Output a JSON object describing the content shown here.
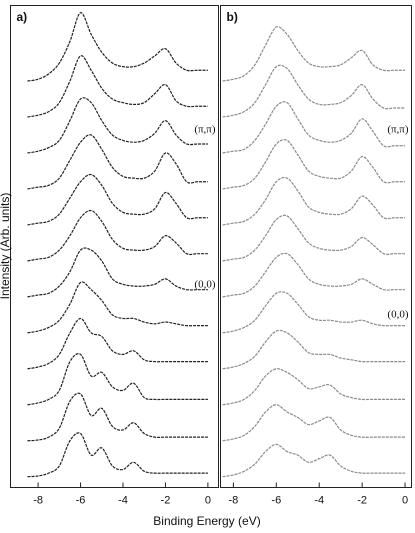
{
  "chart_data": [
    {
      "type": "line",
      "panel_label": "a)",
      "xlabel": "Binding Energy (eV)",
      "ylabel": "Intensity (Arb. units)",
      "x": [
        -8.5,
        -8,
        -7.5,
        -7,
        -6.5,
        -6,
        -5.5,
        -5,
        -4.5,
        -4,
        -3.5,
        -3,
        -2.5,
        -2,
        -1.5,
        -1,
        -0.5,
        0
      ],
      "xlim": [
        -9.3,
        0.5
      ],
      "xticks": [
        -8,
        -6,
        -4,
        -2,
        0
      ],
      "ylim": [
        -0.2,
        13.2
      ],
      "annotations": [
        "(π,π)",
        "(0,0)"
      ],
      "series": [
        {
          "color": "#222222",
          "values": [
            0.1,
            0.12,
            0.2,
            0.4,
            1.1,
            1.3,
            0.7,
            0.9,
            0.4,
            0.3,
            0.5,
            0.25,
            0.2,
            0.2,
            0.2,
            0.2,
            0.2,
            0.2
          ]
        },
        {
          "color": "#222222",
          "values": [
            0.1,
            0.12,
            0.2,
            0.45,
            1.2,
            1.4,
            0.8,
            1.0,
            0.5,
            0.4,
            0.6,
            0.3,
            0.2,
            0.2,
            0.2,
            0.2,
            0.2,
            0.2
          ]
        },
        {
          "color": "#222222",
          "values": [
            0.1,
            0.15,
            0.25,
            0.5,
            1.3,
            1.5,
            0.9,
            1.0,
            0.6,
            0.5,
            0.7,
            0.3,
            0.25,
            0.25,
            0.25,
            0.25,
            0.25,
            0.25
          ]
        },
        {
          "color": "#222222",
          "values": [
            0.1,
            0.15,
            0.25,
            0.5,
            1.1,
            1.5,
            1.1,
            1.0,
            0.6,
            0.5,
            0.6,
            0.35,
            0.3,
            0.3,
            0.3,
            0.3,
            0.3,
            0.3
          ]
        },
        {
          "color": "#222222",
          "values": [
            0.1,
            0.15,
            0.25,
            0.45,
            0.9,
            1.5,
            1.3,
            1.0,
            0.6,
            0.5,
            0.5,
            0.4,
            0.35,
            0.4,
            0.35,
            0.3,
            0.3,
            0.3
          ]
        },
        {
          "color": "#222222",
          "values": [
            0.1,
            0.15,
            0.2,
            0.4,
            0.8,
            1.4,
            1.4,
            1.1,
            0.6,
            0.45,
            0.4,
            0.4,
            0.45,
            0.6,
            0.4,
            0.3,
            0.3,
            0.3
          ]
        },
        {
          "color": "#222222",
          "values": [
            0.1,
            0.15,
            0.2,
            0.4,
            0.8,
            1.3,
            1.5,
            1.2,
            0.7,
            0.45,
            0.4,
            0.4,
            0.5,
            0.8,
            0.6,
            0.3,
            0.3,
            0.3
          ]
        },
        {
          "color": "#222222",
          "values": [
            0.1,
            0.15,
            0.2,
            0.4,
            0.85,
            1.3,
            1.5,
            1.2,
            0.7,
            0.45,
            0.4,
            0.4,
            0.55,
            1.0,
            0.7,
            0.3,
            0.3,
            0.3
          ]
        },
        {
          "color": "#222222",
          "values": [
            0.1,
            0.15,
            0.2,
            0.4,
            0.9,
            1.4,
            1.6,
            1.2,
            0.7,
            0.45,
            0.4,
            0.4,
            0.6,
            1.1,
            0.8,
            0.3,
            0.3,
            0.3
          ]
        },
        {
          "color": "#222222",
          "values": [
            0.1,
            0.15,
            0.25,
            0.45,
            1.0,
            1.6,
            1.5,
            1.0,
            0.6,
            0.45,
            0.4,
            0.45,
            0.65,
            1.0,
            0.6,
            0.35,
            0.35,
            0.35
          ]
        },
        {
          "color": "#222222",
          "values": [
            0.1,
            0.15,
            0.25,
            0.5,
            1.1,
            1.8,
            1.4,
            0.9,
            0.6,
            0.5,
            0.45,
            0.5,
            0.75,
            1.0,
            0.55,
            0.4,
            0.4,
            0.4
          ]
        },
        {
          "color": "#222222",
          "values": [
            0.1,
            0.15,
            0.3,
            0.6,
            1.2,
            2.0,
            1.4,
            0.9,
            0.6,
            0.5,
            0.5,
            0.6,
            0.8,
            1.0,
            0.6,
            0.4,
            0.4,
            0.4
          ]
        }
      ]
    },
    {
      "type": "line",
      "panel_label": "b)",
      "x": [
        -8.5,
        -8,
        -7.5,
        -7,
        -6.5,
        -6,
        -5.5,
        -5,
        -4.5,
        -4,
        -3.5,
        -3,
        -2.5,
        -2,
        -1.5,
        -1,
        -0.5,
        0
      ],
      "xlim": [
        -8.6,
        0.3
      ],
      "xticks": [
        -8,
        -6,
        -4,
        -2,
        0
      ],
      "ylim": [
        -0.2,
        13.2
      ],
      "annotations": [
        "(π,π)",
        "(0,0)"
      ],
      "series": [
        {
          "color": "#8a8a8a",
          "values": [
            0.1,
            0.15,
            0.25,
            0.45,
            0.8,
            1.0,
            0.8,
            0.7,
            0.5,
            0.6,
            0.7,
            0.4,
            0.25,
            0.2,
            0.2,
            0.2,
            0.2,
            0.2
          ]
        },
        {
          "color": "#8a8a8a",
          "values": [
            0.1,
            0.15,
            0.25,
            0.5,
            0.9,
            1.1,
            0.9,
            0.75,
            0.55,
            0.65,
            0.75,
            0.4,
            0.25,
            0.2,
            0.2,
            0.2,
            0.2,
            0.2
          ]
        },
        {
          "color": "#8a8a8a",
          "values": [
            0.1,
            0.15,
            0.25,
            0.5,
            0.9,
            1.1,
            1.0,
            0.8,
            0.55,
            0.6,
            0.65,
            0.4,
            0.3,
            0.25,
            0.25,
            0.25,
            0.25,
            0.25
          ]
        },
        {
          "color": "#8a8a8a",
          "values": [
            0.1,
            0.15,
            0.25,
            0.45,
            0.85,
            1.15,
            1.1,
            0.85,
            0.55,
            0.5,
            0.5,
            0.4,
            0.35,
            0.3,
            0.3,
            0.3,
            0.3,
            0.3
          ]
        },
        {
          "color": "#8a8a8a",
          "values": [
            0.1,
            0.15,
            0.25,
            0.45,
            0.85,
            1.2,
            1.2,
            0.9,
            0.55,
            0.45,
            0.45,
            0.4,
            0.4,
            0.45,
            0.35,
            0.3,
            0.3,
            0.3
          ]
        },
        {
          "color": "#8a8a8a",
          "values": [
            0.1,
            0.15,
            0.2,
            0.4,
            0.8,
            1.2,
            1.3,
            1.0,
            0.6,
            0.45,
            0.4,
            0.4,
            0.45,
            0.6,
            0.45,
            0.3,
            0.3,
            0.3
          ]
        },
        {
          "color": "#8a8a8a",
          "values": [
            0.1,
            0.15,
            0.2,
            0.4,
            0.8,
            1.25,
            1.35,
            1.0,
            0.6,
            0.45,
            0.4,
            0.4,
            0.5,
            0.75,
            0.55,
            0.3,
            0.3,
            0.3
          ]
        },
        {
          "color": "#8a8a8a",
          "values": [
            0.1,
            0.15,
            0.2,
            0.4,
            0.8,
            1.3,
            1.4,
            1.05,
            0.6,
            0.45,
            0.4,
            0.4,
            0.55,
            0.9,
            0.65,
            0.3,
            0.3,
            0.3
          ]
        },
        {
          "color": "#8a8a8a",
          "values": [
            0.1,
            0.15,
            0.2,
            0.4,
            0.85,
            1.35,
            1.45,
            1.05,
            0.6,
            0.45,
            0.4,
            0.4,
            0.6,
            1.0,
            0.7,
            0.3,
            0.3,
            0.3
          ]
        },
        {
          "color": "#8a8a8a",
          "values": [
            0.1,
            0.15,
            0.2,
            0.45,
            0.9,
            1.4,
            1.5,
            1.05,
            0.6,
            0.45,
            0.4,
            0.45,
            0.65,
            1.05,
            0.7,
            0.3,
            0.3,
            0.3
          ]
        },
        {
          "color": "#8a8a8a",
          "values": [
            0.1,
            0.15,
            0.25,
            0.5,
            1.0,
            1.5,
            1.45,
            1.0,
            0.6,
            0.45,
            0.45,
            0.5,
            0.7,
            1.0,
            0.6,
            0.35,
            0.35,
            0.35
          ]
        },
        {
          "color": "#8a8a8a",
          "values": [
            0.1,
            0.15,
            0.25,
            0.55,
            1.1,
            1.6,
            1.4,
            0.95,
            0.6,
            0.5,
            0.5,
            0.55,
            0.75,
            0.95,
            0.55,
            0.4,
            0.4,
            0.4
          ]
        }
      ]
    }
  ]
}
